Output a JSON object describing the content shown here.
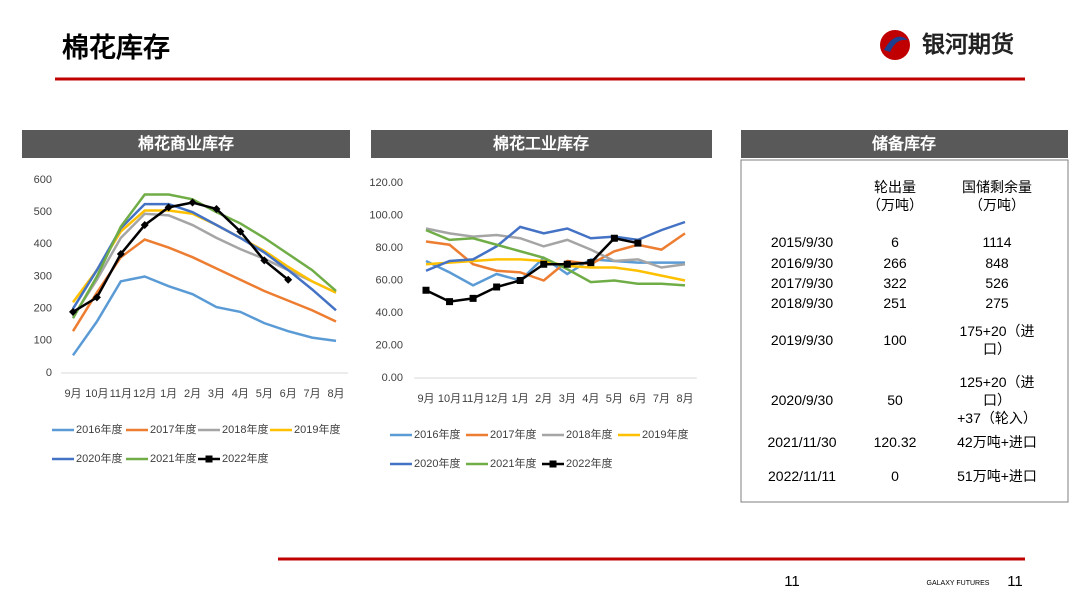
{
  "header": {
    "title": "棉花库存",
    "logo": "银河期货"
  },
  "chart_data": [
    {
      "type": "line",
      "title": "棉花商业库存",
      "categories": [
        "9月",
        "10月",
        "11月",
        "12月",
        "1月",
        "2月",
        "3月",
        "4月",
        "5月",
        "6月",
        "7月",
        "8月"
      ],
      "ylim": [
        0,
        600
      ],
      "yticks": [
        0,
        100,
        200,
        300,
        400,
        500,
        600
      ],
      "series": [
        {
          "name": "2016年度",
          "color": "#5b9bd5",
          "values": [
            55,
            160,
            285,
            300,
            270,
            245,
            205,
            190,
            155,
            130,
            110,
            100
          ]
        },
        {
          "name": "2017年度",
          "color": "#ed7d31",
          "values": [
            130,
            250,
            360,
            415,
            390,
            360,
            325,
            290,
            255,
            225,
            195,
            160
          ]
        },
        {
          "name": "2018年度",
          "color": "#a5a5a5",
          "values": [
            175,
            290,
            420,
            495,
            490,
            460,
            420,
            385,
            355,
            320,
            285,
            250
          ]
        },
        {
          "name": "2019年度",
          "color": "#ffc000",
          "values": [
            220,
            320,
            440,
            505,
            505,
            495,
            460,
            420,
            380,
            330,
            285,
            250
          ]
        },
        {
          "name": "2020年度",
          "color": "#4472c4",
          "values": [
            200,
            320,
            450,
            525,
            525,
            500,
            460,
            420,
            375,
            320,
            260,
            195
          ]
        },
        {
          "name": "2021年度",
          "color": "#70ad47",
          "values": [
            170,
            300,
            455,
            555,
            555,
            540,
            500,
            465,
            420,
            370,
            320,
            255
          ]
        },
        {
          "name": "2022年度",
          "color": "#000000",
          "marker": "diamond",
          "values": [
            190,
            235,
            370,
            460,
            515,
            530,
            510,
            440,
            350,
            290,
            null,
            null
          ]
        }
      ]
    },
    {
      "type": "line",
      "title": "棉花工业库存",
      "categories": [
        "9月",
        "10月",
        "11月",
        "12月",
        "1月",
        "2月",
        "3月",
        "4月",
        "5月",
        "6月",
        "7月",
        "8月"
      ],
      "ylim": [
        0,
        120
      ],
      "yticks": [
        {
          "value": 0,
          "label": "0.00"
        },
        {
          "value": 20,
          "label": "20.00"
        },
        {
          "value": 40,
          "label": "40.00"
        },
        {
          "value": 60,
          "label": "60.00"
        },
        {
          "value": 80,
          "label": "80.00"
        },
        {
          "value": 100,
          "label": "100.00"
        },
        {
          "value": 120,
          "label": "120.00"
        }
      ],
      "series": [
        {
          "name": "2016年度",
          "color": "#5b9bd5",
          "values": [
            72,
            65,
            57,
            64,
            60,
            74,
            64,
            73,
            72,
            71,
            71,
            71
          ]
        },
        {
          "name": "2017年度",
          "color": "#ed7d31",
          "values": [
            84,
            82,
            70,
            66,
            65,
            60,
            72,
            70,
            78,
            82,
            79,
            89
          ]
        },
        {
          "name": "2018年度",
          "color": "#a5a5a5",
          "values": [
            92,
            89,
            87,
            88,
            86,
            81,
            85,
            79,
            72,
            73,
            68,
            70
          ]
        },
        {
          "name": "2019年度",
          "color": "#ffc000",
          "values": [
            70,
            71,
            72,
            73,
            73,
            72,
            69,
            68,
            68,
            66,
            63,
            60
          ]
        },
        {
          "name": "2020年度",
          "color": "#4472c4",
          "values": [
            66,
            72,
            73,
            81,
            93,
            89,
            92,
            86,
            87,
            85,
            91,
            96
          ]
        },
        {
          "name": "2021年度",
          "color": "#70ad47",
          "values": [
            91,
            85,
            86,
            82,
            78,
            74,
            67,
            59,
            60,
            58,
            58,
            57
          ]
        },
        {
          "name": "2022年度",
          "color": "#000000",
          "marker": "square",
          "values": [
            54,
            47,
            49,
            56,
            60,
            70,
            70,
            71,
            86,
            83,
            null,
            null
          ]
        }
      ]
    }
  ],
  "table": {
    "title": "储备库存",
    "header": [
      "轮出量\n（万吨）",
      "国储剩余量（万吨）"
    ],
    "rows": [
      [
        "2015/9/30",
        "6",
        "1114"
      ],
      [
        "2016/9/30",
        "266",
        "848"
      ],
      [
        "2017/9/30",
        "322",
        "526"
      ],
      [
        "2018/9/30",
        "251",
        "275"
      ],
      [
        "2019/9/30",
        "100",
        "175+20（进口）"
      ],
      [
        "2020/9/30",
        "50",
        "125+20（进口）\n+37（轮入）"
      ],
      [
        "2021/11/30",
        "120.32",
        "42万吨+进口"
      ],
      [
        "2022/11/11",
        "0",
        "51万吨+进口"
      ]
    ]
  },
  "footer": {
    "page": "11",
    "brand": "GALAXY FUTURES",
    "page_right": "11"
  }
}
